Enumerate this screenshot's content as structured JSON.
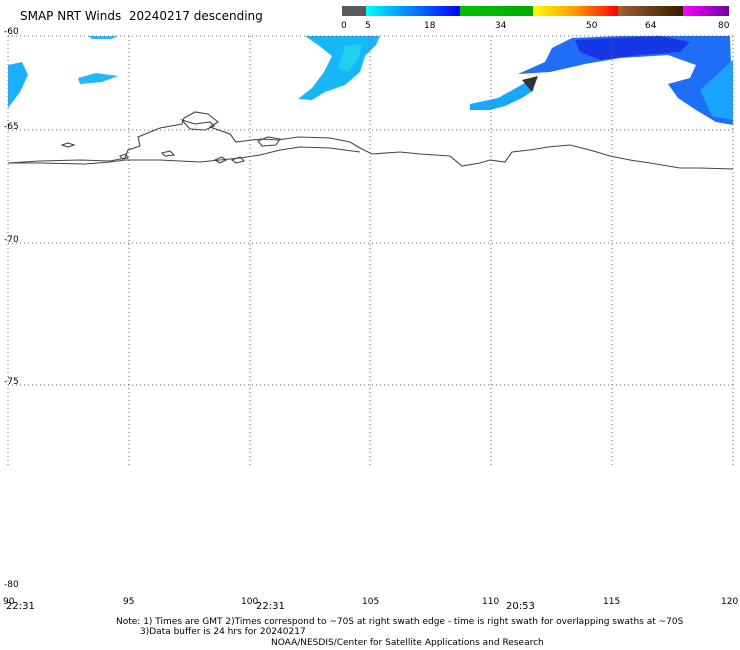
{
  "title": "SMAP NRT Winds  20240217 descending",
  "colorbar": {
    "ticks": [
      "0",
      "5",
      "18",
      "34",
      "50",
      "64",
      "80"
    ],
    "colors": [
      "#5a5a5a",
      "#000000",
      "#00aaff",
      "#0000ff",
      "#00c000",
      "#ffff00",
      "#ff0000",
      "#7f3f00",
      "#ff00ff",
      "#400080"
    ]
  },
  "lat_labels": [
    "-60",
    "-65",
    "-70",
    "-75",
    "-80"
  ],
  "lon_labels": [
    "90",
    "95",
    "100",
    "105",
    "110",
    "115",
    "120"
  ],
  "time_labels": [
    "22:31",
    "22:31",
    "20:53"
  ],
  "notes": {
    "line1": "Note: 1) Times are GMT 2)Times correspond to ~70S at right swath edge - time is right swath for overlapping swaths at ~70S",
    "line2": "3)Data buffer is 24 hrs for 20240217",
    "line3": "NOAA/NESDIS/Center for Satellite Applications and Research"
  }
}
